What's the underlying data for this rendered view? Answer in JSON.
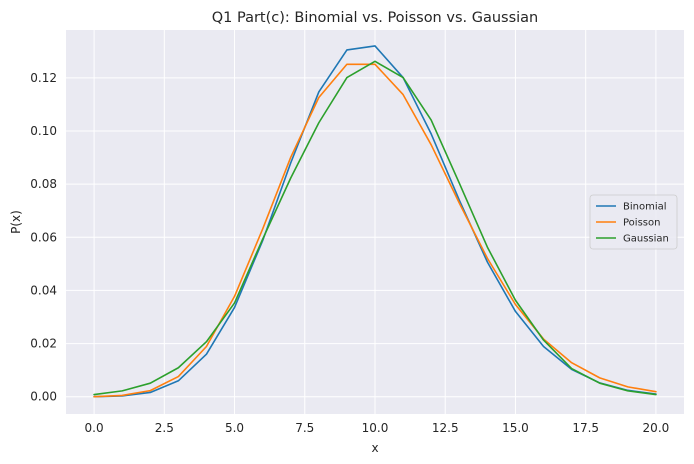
{
  "chart_data": {
    "type": "line",
    "title": "Q1 Part(c): Binomial vs. Poisson vs. Gaussian",
    "xlabel": "x",
    "ylabel": "P(x)",
    "xlim": [
      -1.0,
      21.0
    ],
    "ylim": [
      -0.0065,
      0.138
    ],
    "xticks": [
      0.0,
      2.5,
      5.0,
      7.5,
      10.0,
      12.5,
      15.0,
      17.5,
      20.0
    ],
    "xtick_labels": [
      "0.0",
      "2.5",
      "5.0",
      "7.5",
      "10.0",
      "12.5",
      "15.0",
      "17.5",
      "20.0"
    ],
    "yticks": [
      0.0,
      0.02,
      0.04,
      0.06,
      0.08,
      0.1,
      0.12
    ],
    "ytick_labels": [
      "0.00",
      "0.02",
      "0.04",
      "0.06",
      "0.08",
      "0.10",
      "0.12"
    ],
    "grid": true,
    "legend_position": "center-right",
    "x": [
      0,
      1,
      2,
      3,
      4,
      5,
      6,
      7,
      8,
      9,
      10,
      11,
      12,
      13,
      14,
      15,
      16,
      17,
      18,
      19,
      20
    ],
    "series": [
      {
        "name": "Binomial",
        "color": "#1f77b4",
        "values": [
          0.0,
          0.0003,
          0.0016,
          0.006,
          0.016,
          0.0336,
          0.0587,
          0.088,
          0.1147,
          0.1305,
          0.132,
          0.1201,
          0.0989,
          0.074,
          0.0507,
          0.0321,
          0.0189,
          0.0103,
          0.0052,
          0.0024,
          0.001
        ]
      },
      {
        "name": "Poisson",
        "color": "#ff7f0e",
        "values": [
          0.0,
          0.0005,
          0.0023,
          0.0076,
          0.0189,
          0.0378,
          0.0631,
          0.0901,
          0.1126,
          0.1251,
          0.1251,
          0.1137,
          0.0948,
          0.0729,
          0.0521,
          0.0347,
          0.0217,
          0.0128,
          0.0071,
          0.0037,
          0.0019
        ]
      },
      {
        "name": "Gaussian",
        "color": "#2ca02c",
        "values": [
          0.0008,
          0.0022,
          0.0051,
          0.0109,
          0.0207,
          0.0353,
          0.0593,
          0.0823,
          0.1031,
          0.1201,
          0.1262,
          0.1201,
          0.1041,
          0.0804,
          0.0563,
          0.0363,
          0.0213,
          0.0106,
          0.0051,
          0.0022,
          0.0008
        ]
      }
    ]
  }
}
